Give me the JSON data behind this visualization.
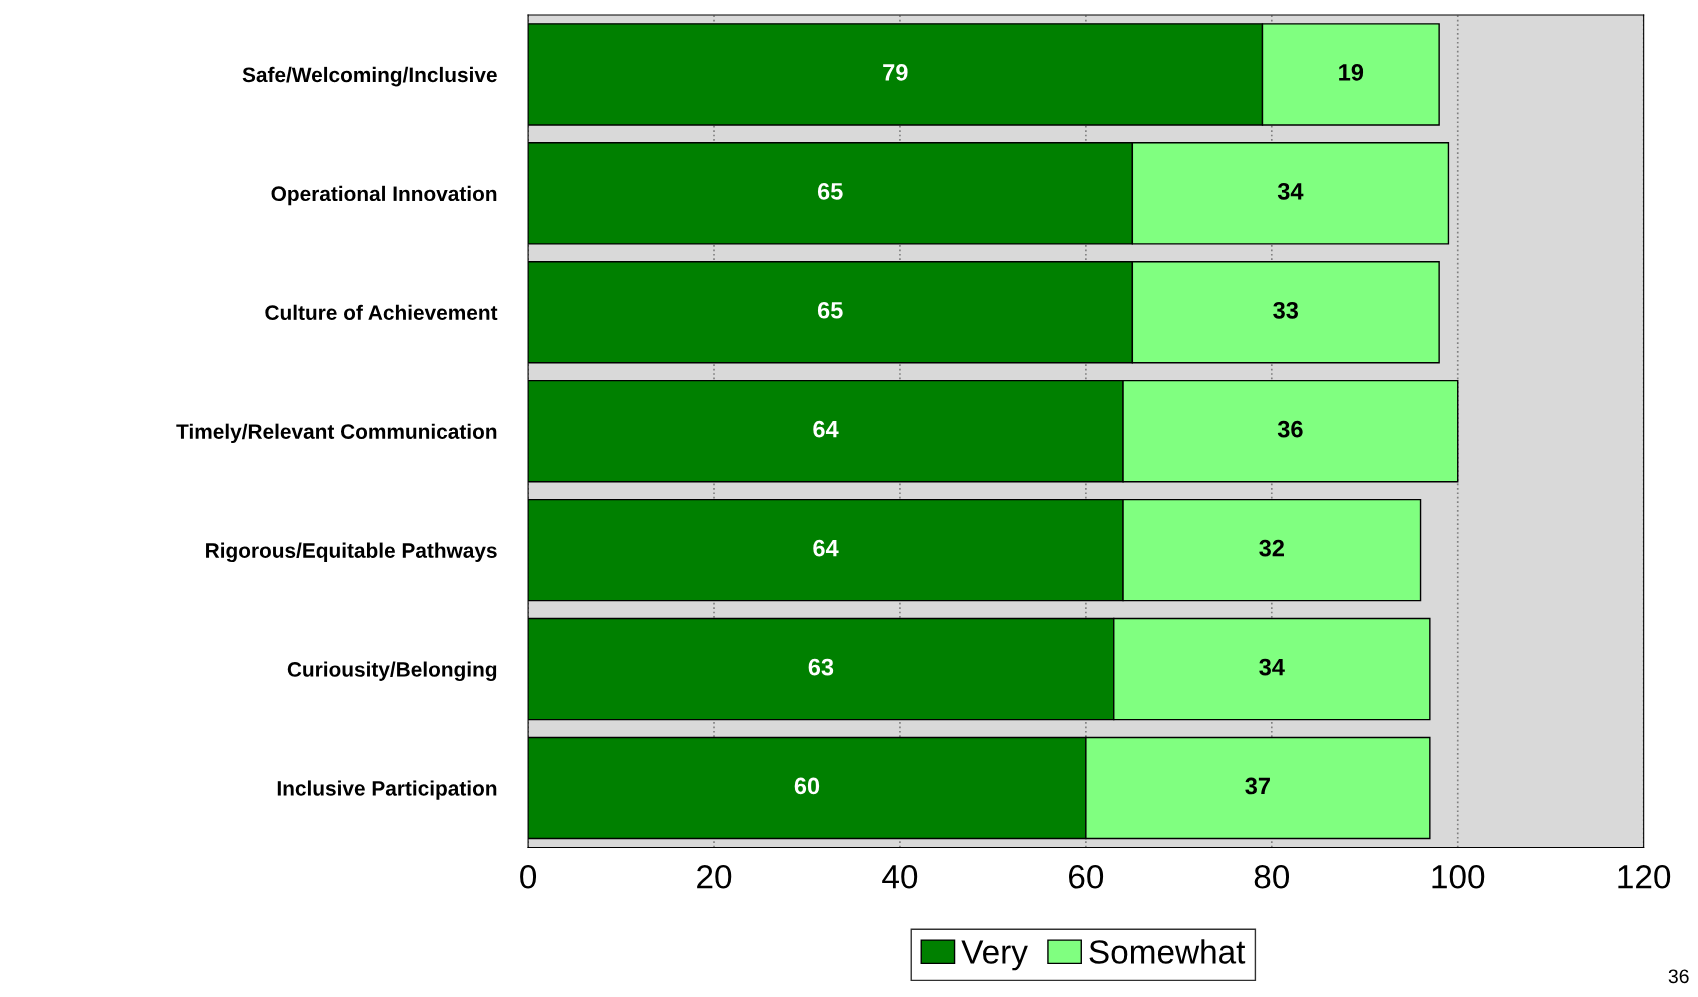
{
  "chart_data": {
    "type": "bar",
    "orientation": "horizontal",
    "stacked": true,
    "categories": [
      "Safe/Welcoming/Inclusive",
      "Operational Innovation",
      "Culture of Achievement",
      "Timely/Relevant Communication",
      "Rigorous/Equitable Pathways",
      "Curiousity/Belonging",
      "Inclusive Participation"
    ],
    "series": [
      {
        "name": "Very",
        "color": "#008000",
        "values": [
          79,
          65,
          65,
          64,
          64,
          63,
          60
        ]
      },
      {
        "name": "Somewhat",
        "color": "#80ff80",
        "values": [
          19,
          34,
          33,
          36,
          32,
          34,
          37
        ]
      }
    ],
    "xlim": [
      0,
      120
    ],
    "xticks": [
      0,
      20,
      40,
      60,
      80,
      100,
      120
    ],
    "grid": "x",
    "legend": "bottom",
    "data_labels": true,
    "annotations": [
      "36"
    ]
  }
}
